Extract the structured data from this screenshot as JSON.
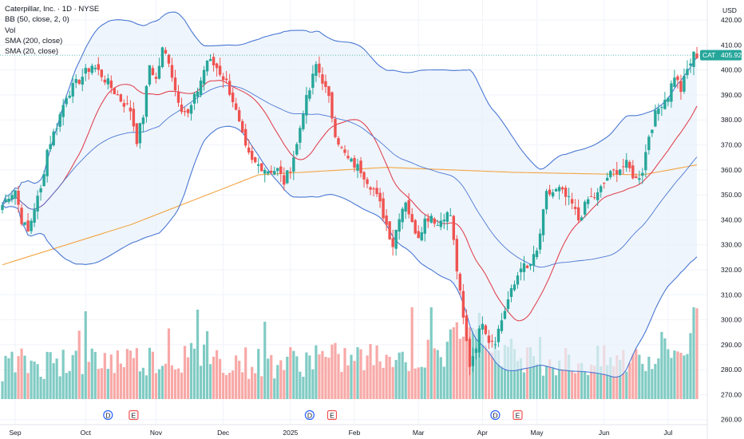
{
  "legend": {
    "symbol_line": "Caterpillar, Inc. · 1D · NYSE",
    "bb": "BB (50, close, 2, 0)",
    "vol": "Vol",
    "sma200": "SMA (200, close)",
    "sma20": "SMA (20, close)"
  },
  "currency": "USD",
  "last_price": {
    "ticker": "CAT",
    "value": "405.92"
  },
  "colors": {
    "up": "#26a69a",
    "down": "#ef5350",
    "vol_up": "#80cbc4",
    "vol_down": "#f7a9a7",
    "bb_band": "#4a78d4",
    "bb_fill": "#e8f1fb",
    "sma200": "#f2a545",
    "sma_red": "#e04553",
    "grid": "#f0f3fa",
    "axis_text": "#131722"
  },
  "chart_data": {
    "type": "candlestick",
    "y_ticks": [
      "260.00",
      "270.00",
      "280.00",
      "290.00",
      "300.00",
      "310.00",
      "320.00",
      "330.00",
      "340.00",
      "350.00",
      "360.00",
      "370.00",
      "380.00",
      "390.00",
      "400.00",
      "410.00",
      "420.00"
    ],
    "ylim": [
      258,
      428
    ],
    "x_ticks": [
      "Sep",
      "Oct",
      "Nov",
      "Dec",
      "2025",
      "Feb",
      "Mar",
      "Apr",
      "May",
      "Jun",
      "Jul"
    ],
    "event_markers": [
      {
        "label": "D",
        "after_month": "Oct"
      },
      {
        "label": "E",
        "after_month": "Oct"
      },
      {
        "label": "D",
        "after_month": "Jan"
      },
      {
        "label": "E",
        "after_month": "Jan"
      },
      {
        "label": "D",
        "after_month": "Apr"
      },
      {
        "label": "E",
        "after_month": "Apr"
      }
    ],
    "close_anchors": [
      [
        0,
        346
      ],
      [
        2,
        350
      ],
      [
        4,
        352
      ],
      [
        6,
        340
      ],
      [
        8,
        335
      ],
      [
        10,
        345
      ],
      [
        12,
        352
      ],
      [
        14,
        368
      ],
      [
        17,
        378
      ],
      [
        20,
        390
      ],
      [
        24,
        396
      ],
      [
        28,
        402
      ],
      [
        31,
        398
      ],
      [
        34,
        393
      ],
      [
        37,
        388
      ],
      [
        40,
        384
      ],
      [
        42,
        372
      ],
      [
        44,
        382
      ],
      [
        46,
        402
      ],
      [
        48,
        396
      ],
      [
        50,
        408
      ],
      [
        52,
        404
      ],
      [
        54,
        392
      ],
      [
        56,
        385
      ],
      [
        58,
        382
      ],
      [
        61,
        392
      ],
      [
        64,
        404
      ],
      [
        67,
        401
      ],
      [
        70,
        395
      ],
      [
        72,
        388
      ],
      [
        74,
        378
      ],
      [
        76,
        368
      ],
      [
        78,
        363
      ],
      [
        80,
        362
      ],
      [
        83,
        360
      ],
      [
        86,
        360
      ],
      [
        88,
        355
      ],
      [
        90,
        361
      ],
      [
        92,
        370
      ],
      [
        94,
        384
      ],
      [
        96,
        392
      ],
      [
        98,
        402
      ],
      [
        100,
        396
      ],
      [
        102,
        388
      ],
      [
        104,
        375
      ],
      [
        106,
        368
      ],
      [
        108,
        364
      ],
      [
        110,
        362
      ],
      [
        112,
        360
      ],
      [
        114,
        356
      ],
      [
        116,
        352
      ],
      [
        118,
        346
      ],
      [
        120,
        338
      ],
      [
        122,
        330
      ],
      [
        124,
        342
      ],
      [
        126,
        348
      ],
      [
        128,
        338
      ],
      [
        130,
        334
      ],
      [
        132,
        340
      ],
      [
        134,
        342
      ],
      [
        136,
        338
      ],
      [
        138,
        342
      ],
      [
        140,
        342
      ],
      [
        142,
        320
      ],
      [
        144,
        300
      ],
      [
        146,
        282
      ],
      [
        148,
        290
      ],
      [
        150,
        300
      ],
      [
        152,
        292
      ],
      [
        154,
        292
      ],
      [
        156,
        300
      ],
      [
        158,
        308
      ],
      [
        160,
        314
      ],
      [
        162,
        322
      ],
      [
        164,
        320
      ],
      [
        167,
        327
      ],
      [
        170,
        350
      ],
      [
        174,
        352
      ],
      [
        178,
        346
      ],
      [
        180,
        340
      ],
      [
        183,
        348
      ],
      [
        186,
        350
      ],
      [
        189,
        357
      ],
      [
        192,
        360
      ],
      [
        195,
        362
      ],
      [
        198,
        356
      ],
      [
        200,
        360
      ],
      [
        202,
        374
      ],
      [
        204,
        382
      ],
      [
        206,
        387
      ],
      [
        208,
        390
      ],
      [
        210,
        398
      ],
      [
        212,
        392
      ],
      [
        214,
        400
      ],
      [
        216,
        406
      ],
      [
        217,
        406
      ]
    ],
    "volume_anchors": [
      [
        0,
        0.18
      ],
      [
        20,
        0.22
      ],
      [
        40,
        0.24
      ],
      [
        62,
        0.26
      ],
      [
        80,
        0.2
      ],
      [
        100,
        0.24
      ],
      [
        120,
        0.26
      ],
      [
        138,
        0.27
      ],
      [
        146,
        0.75
      ],
      [
        152,
        0.4
      ],
      [
        160,
        0.28
      ],
      [
        180,
        0.2
      ],
      [
        200,
        0.24
      ],
      [
        217,
        0.4
      ]
    ],
    "series": [
      {
        "name": "BB (50, close, 2, 0)",
        "role": "basis, upper, lower bands"
      },
      {
        "name": "SMA (200, close)",
        "color": "#f2a545"
      },
      {
        "name": "SMA (20, close)"
      }
    ]
  }
}
